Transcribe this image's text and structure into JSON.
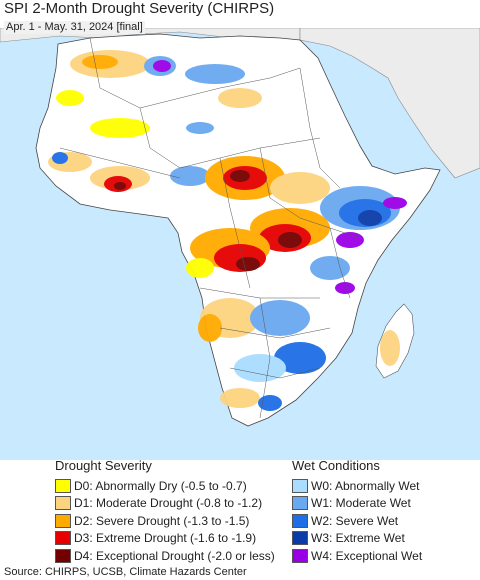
{
  "title": "SPI 2-Month Drought Severity (CHIRPS)",
  "subtitle": "Apr. 1 - May. 31, 2024 [final]",
  "legend_drought": {
    "title": "Drought Severity",
    "items": [
      {
        "label": "D0: Abnormally Dry (-0.5 to -0.7)",
        "color": "#ffff00"
      },
      {
        "label": "D1: Moderate Drought (-0.8 to -1.2)",
        "color": "#fcd37f"
      },
      {
        "label": "D2: Severe Drought (-1.3 to -1.5)",
        "color": "#ffaa00"
      },
      {
        "label": "D3: Extreme Drought (-1.6 to -1.9)",
        "color": "#e60000"
      },
      {
        "label": "D4: Exceptional Drought (-2.0 or less)",
        "color": "#730000"
      }
    ]
  },
  "legend_wet": {
    "title": "Wet Conditions",
    "items": [
      {
        "label": "W0: Abnormally Wet",
        "color": "#aaddff"
      },
      {
        "label": "W1: Moderate Wet",
        "color": "#6aa8f0"
      },
      {
        "label": "W2: Severe Wet",
        "color": "#1e6ee6"
      },
      {
        "label": "W3: Extreme Wet",
        "color": "#0a3ca8"
      },
      {
        "label": "W4: Exceptional Wet",
        "color": "#9a00e6"
      }
    ]
  },
  "source": "Source: CHIRPS, UCSB, Climate Hazards Center",
  "map_colors": {
    "ocean": "#c9e9ff",
    "land": "#ffffff",
    "non_africa_land": "#ececec",
    "border": "#555555"
  }
}
